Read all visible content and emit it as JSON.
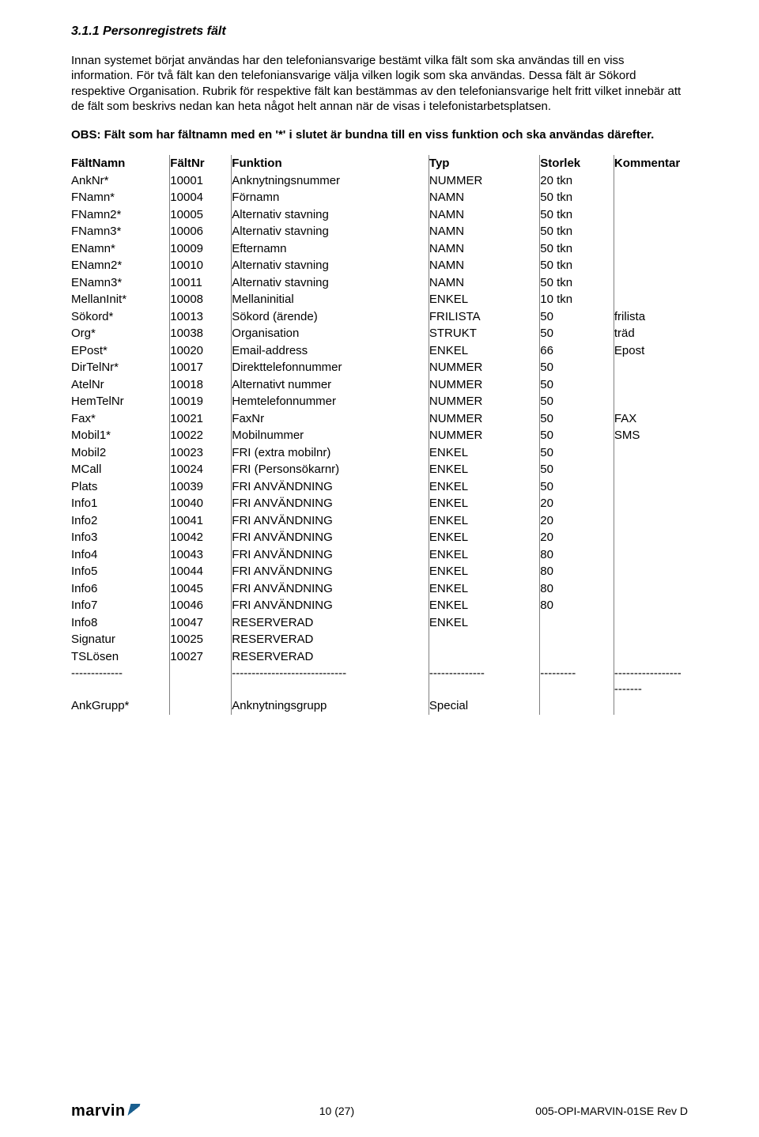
{
  "heading": "3.1.1  Personregistrets fält",
  "para1": "Innan systemet börjat användas har den telefoniansvarige bestämt vilka fält som ska användas till en viss information. För två fält kan den telefoniansvarige välja vilken logik som ska användas. Dessa fält är Sökord respektive Organisation. Rubrik för respektive fält kan bestämmas av den telefoniansvarige helt fritt vilket innebär att de fält som beskrivs nedan kan heta något helt annan när de visas i telefonistarbetsplatsen.",
  "para2": "OBS: Fält som har fältnamn med en '*' i slutet är bundna till en viss funktion och ska användas därefter.",
  "columns": {
    "name": "FältNamn",
    "nr": "FältNr",
    "func": "Funktion",
    "type": "Typ",
    "size": "Storlek",
    "comm": "Kommentar"
  },
  "rows": [
    {
      "name": "AnkNr*",
      "nr": "10001",
      "func": "Anknytningsnummer",
      "type": "NUMMER",
      "size": "20 tkn",
      "comm": ""
    },
    {
      "name": "FNamn*",
      "nr": "10004",
      "func": "Förnamn",
      "type": "NAMN",
      "size": "50 tkn",
      "comm": ""
    },
    {
      "name": "FNamn2*",
      "nr": "10005",
      "func": "Alternativ stavning",
      "type": "NAMN",
      "size": "50 tkn",
      "comm": ""
    },
    {
      "name": "FNamn3*",
      "nr": "10006",
      "func": "Alternativ stavning",
      "type": "NAMN",
      "size": "50 tkn",
      "comm": ""
    },
    {
      "name": "ENamn*",
      "nr": "10009",
      "func": "Efternamn",
      "type": "NAMN",
      "size": "50 tkn",
      "comm": ""
    },
    {
      "name": "ENamn2*",
      "nr": "10010",
      "func": "Alternativ stavning",
      "type": "NAMN",
      "size": "50 tkn",
      "comm": ""
    },
    {
      "name": "ENamn3*",
      "nr": "10011",
      "func": "Alternativ stavning",
      "type": "NAMN",
      "size": "50 tkn",
      "comm": ""
    },
    {
      "name": "MellanInit*",
      "nr": "10008",
      "func": "Mellaninitial",
      "type": "ENKEL",
      "size": "10 tkn",
      "comm": ""
    },
    {
      "name": "Sökord*",
      "nr": "10013",
      "func": "Sökord (ärende)",
      "type": "FRILISTA",
      "size": "50",
      "comm": "frilista"
    },
    {
      "name": "Org*",
      "nr": "10038",
      "func": "Organisation",
      "type": "STRUKT",
      "size": "50",
      "comm": "träd"
    },
    {
      "name": "EPost*",
      "nr": "10020",
      "func": "Email-address",
      "type": "ENKEL",
      "size": "66",
      "comm": "Epost"
    },
    {
      "name": "DirTelNr*",
      "nr": "10017",
      "func": "Direkttelefonnummer",
      "type": "NUMMER",
      "size": "50",
      "comm": ""
    },
    {
      "name": "AtelNr",
      "nr": "10018",
      "func": "Alternativt nummer",
      "type": "NUMMER",
      "size": "50",
      "comm": ""
    },
    {
      "name": "HemTelNr",
      "nr": "10019",
      "func": "Hemtelefonnummer",
      "type": "NUMMER",
      "size": "50",
      "comm": ""
    },
    {
      "name": "Fax*",
      "nr": "10021",
      "func": "FaxNr",
      "type": "NUMMER",
      "size": "50",
      "comm": "FAX"
    },
    {
      "name": "Mobil1*",
      "nr": "10022",
      "func": "Mobilnummer",
      "type": "NUMMER",
      "size": "50",
      "comm": "SMS"
    },
    {
      "name": "Mobil2",
      "nr": "10023",
      "func": "FRI (extra mobilnr)",
      "type": "ENKEL",
      "size": "50",
      "comm": ""
    },
    {
      "name": "MCall",
      "nr": "10024",
      "func": "FRI (Personsökarnr)",
      "type": "ENKEL",
      "size": "50",
      "comm": ""
    },
    {
      "name": "Plats",
      "nr": "10039",
      "func": "FRI ANVÄNDNING",
      "type": "ENKEL",
      "size": "50",
      "comm": ""
    },
    {
      "name": "Info1",
      "nr": "10040",
      "func": "FRI ANVÄNDNING",
      "type": "ENKEL",
      "size": "20",
      "comm": ""
    },
    {
      "name": "Info2",
      "nr": "10041",
      "func": "FRI ANVÄNDNING",
      "type": "ENKEL",
      "size": "20",
      "comm": ""
    },
    {
      "name": "Info3",
      "nr": "10042",
      "func": "FRI ANVÄNDNING",
      "type": "ENKEL",
      "size": "20",
      "comm": ""
    },
    {
      "name": "Info4",
      "nr": "10043",
      "func": "FRI ANVÄNDNING",
      "type": "ENKEL",
      "size": "80",
      "comm": ""
    },
    {
      "name": "Info5",
      "nr": "10044",
      "func": "FRI ANVÄNDNING",
      "type": "ENKEL",
      "size": "80",
      "comm": ""
    },
    {
      "name": "Info6",
      "nr": "10045",
      "func": "FRI ANVÄNDNING",
      "type": "ENKEL",
      "size": "80",
      "comm": ""
    },
    {
      "name": "Info7",
      "nr": "10046",
      "func": "FRI ANVÄNDNING",
      "type": "ENKEL",
      "size": "80",
      "comm": ""
    },
    {
      "name": "Info8",
      "nr": "10047",
      "func": "RESERVERAD",
      "type": "ENKEL",
      "size": "",
      "comm": ""
    },
    {
      "name": "Signatur",
      "nr": "10025",
      "func": "RESERVERAD",
      "type": "",
      "size": "",
      "comm": ""
    },
    {
      "name": "TSLösen",
      "nr": "10027",
      "func": "RESERVERAD",
      "type": "",
      "size": "",
      "comm": ""
    },
    {
      "name": "-------------",
      "nr": "",
      "func": "-----------------------------",
      "type": "--------------",
      "size": "---------",
      "comm": "------------------------"
    },
    {
      "name": "AnkGrupp*",
      "nr": "",
      "func": "Anknytningsgrupp",
      "type": "Special",
      "size": "",
      "comm": ""
    }
  ],
  "footer": {
    "logo": "marvin",
    "center": "10 (27)",
    "right": "005-OPI-MARVIN-01SE Rev D"
  }
}
